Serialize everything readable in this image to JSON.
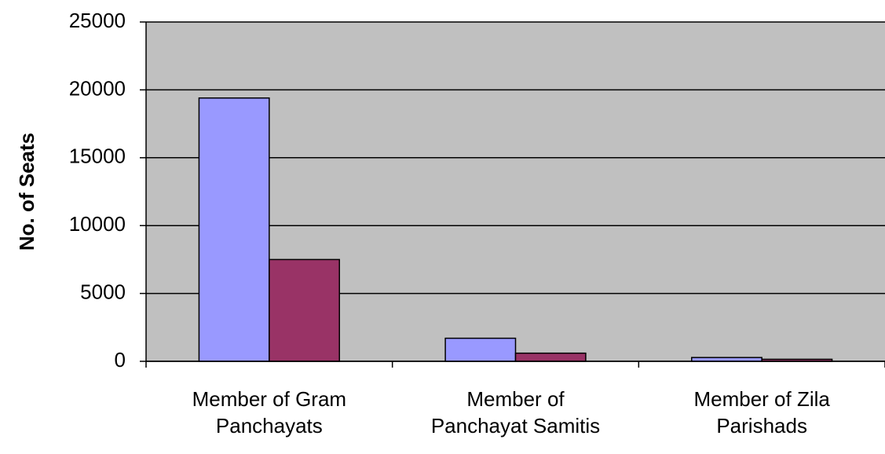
{
  "chart_data": {
    "type": "bar",
    "y_label": "No. of Seats",
    "categories": [
      [
        "Member of Gram",
        "Panchayats"
      ],
      [
        "Member of",
        "Panchayat Samitis"
      ],
      [
        "Member of Zila",
        "Parishads"
      ]
    ],
    "series": [
      {
        "color": "#9999ff",
        "values": [
          19400,
          1700,
          280
        ]
      },
      {
        "color": "#993366",
        "values": [
          7500,
          600,
          150
        ]
      }
    ],
    "ylim": [
      0,
      25000
    ],
    "yticks": [
      0,
      5000,
      10000,
      15000,
      20000,
      25000
    ],
    "grid": true,
    "plot_background": "#c0c0c0"
  }
}
